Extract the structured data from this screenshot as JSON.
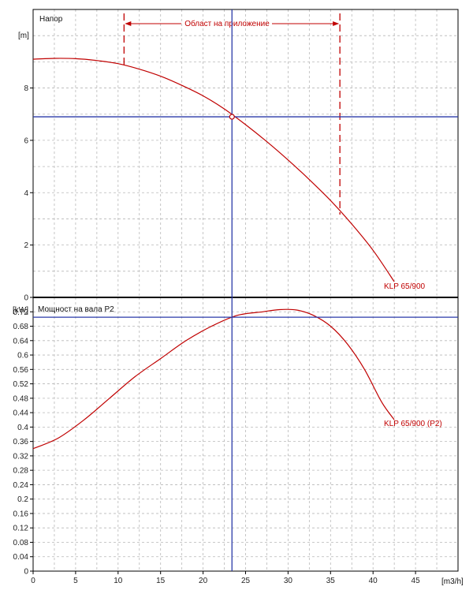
{
  "colors": {
    "curve": "#c00000",
    "crosshair": "#2a3aa8",
    "grid": "#b8b8b8",
    "frame": "#000000"
  },
  "chart_data": [
    {
      "type": "line",
      "title": "Напор",
      "ylabel": "[m]",
      "xlim": [
        0,
        50
      ],
      "ylim": [
        0,
        11
      ],
      "y_ticks": [
        0,
        2,
        4,
        6,
        8
      ],
      "grid": true,
      "series": [
        {
          "name": "KLP 65/900",
          "x": [
            0,
            2.5,
            5,
            7.5,
            10,
            12.5,
            15,
            17.5,
            20,
            22.5,
            25,
            27.5,
            30,
            32.5,
            35,
            37.5,
            40,
            42.5
          ],
          "y": [
            9.1,
            9.13,
            9.12,
            9.05,
            8.93,
            8.72,
            8.45,
            8.1,
            7.7,
            7.2,
            6.6,
            5.95,
            5.25,
            4.5,
            3.7,
            2.8,
            1.8,
            0.6
          ]
        }
      ],
      "operating_point": {
        "x": 23.4,
        "y": 6.9
      },
      "application_range": {
        "label": "Област на приложение",
        "x_min": 10.7,
        "x_max": 36.1
      }
    },
    {
      "type": "line",
      "title": "Мощност на вала P2",
      "ylabel": "[kW]",
      "xlabel": "[m3/h]",
      "xlim": [
        0,
        50
      ],
      "ylim": [
        0,
        0.76
      ],
      "x_ticks": [
        0,
        5,
        10,
        15,
        20,
        25,
        30,
        35,
        40,
        45
      ],
      "y_ticks": [
        "0",
        "0.04",
        "0.08",
        "0.12",
        "0.16",
        "0.2",
        "0.24",
        "0.28",
        "0.32",
        "0.36",
        "0.4",
        "0.44",
        "0.48",
        "0.52",
        "0.56",
        "0.6",
        "0.64",
        "0.68",
        "0.72"
      ],
      "grid": true,
      "series": [
        {
          "name": "KLP 65/900 (P2)",
          "x": [
            0,
            3,
            6,
            9,
            12,
            15,
            18,
            21,
            24,
            27,
            29,
            31,
            33,
            35,
            37,
            39,
            41,
            42.5
          ],
          "y": [
            0.34,
            0.37,
            0.42,
            0.48,
            0.54,
            0.59,
            0.64,
            0.68,
            0.71,
            0.72,
            0.726,
            0.725,
            0.71,
            0.68,
            0.63,
            0.56,
            0.47,
            0.42
          ]
        }
      ],
      "operating_point": {
        "x": 23.4,
        "y": 0.705
      }
    }
  ]
}
